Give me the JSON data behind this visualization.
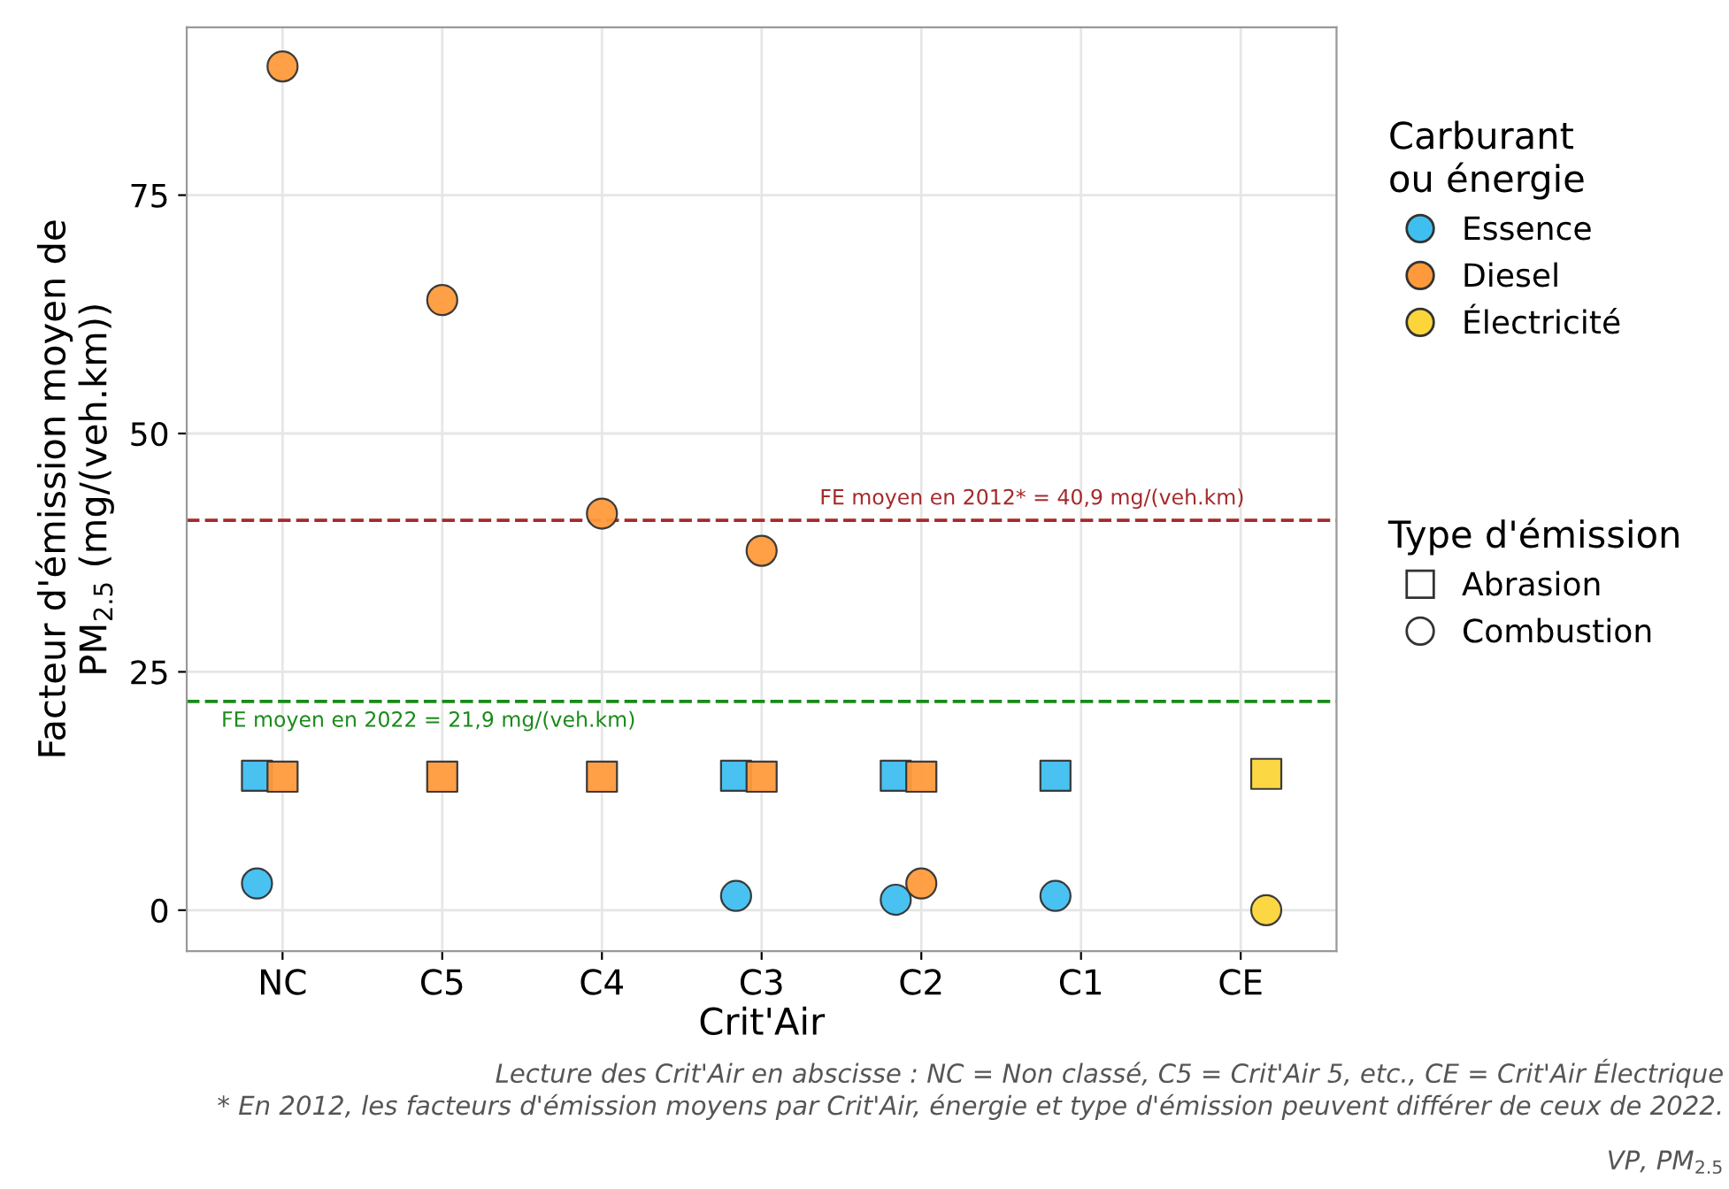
{
  "chart_data": {
    "type": "scatter",
    "xlabel": "Crit'Air",
    "ylabel": "Facteur d'émission moyen de\nPM$_{2.5}$ (mg/(veh.km))",
    "categories": [
      "NC",
      "C5",
      "C4",
      "C3",
      "C2",
      "C1",
      "CE"
    ],
    "ylim": [
      -4.3,
      92.6
    ],
    "yticks": [
      0,
      25,
      50,
      75
    ],
    "grid": true,
    "legend": "right",
    "legend_title": [
      "Carburant\nou énergie",
      "Type d'émission"
    ],
    "series": [
      {
        "color": "#3fbff0",
        "marker": "square",
        "values": [
          14.1,
          null,
          null,
          14.1,
          14.1,
          14.1,
          null
        ]
      },
      {
        "color": "#ff9a3c",
        "marker": "square",
        "values": [
          14.0,
          14.0,
          14.0,
          14.0,
          14.0,
          null,
          null
        ]
      },
      {
        "color": "#fcd53a",
        "marker": "square",
        "values": [
          null,
          null,
          null,
          null,
          null,
          null,
          14.3
        ]
      },
      {
        "name": "Essence",
        "color": "#3fbff0",
        "marker": "circle",
        "values": [
          2.8,
          null,
          null,
          1.5,
          1.1,
          1.5,
          null
        ]
      },
      {
        "name": "Diesel",
        "color": "#ff9a3c",
        "marker": "circle",
        "values": [
          88.5,
          64.0,
          41.6,
          37.7,
          2.8,
          null,
          null
        ]
      },
      {
        "name": "Électricité",
        "color": "#fcd53a",
        "marker": "circle",
        "values": [
          null,
          null,
          null,
          null,
          null,
          null,
          0
        ]
      }
    ],
    "ref_lines": [
      {
        "axis": "y",
        "value": 40.9,
        "label": "FE moyen en 2012* = 40,9 mg/(veh.km)",
        "color": "#a52a2a",
        "line_style": "dashed"
      },
      {
        "axis": "y",
        "value": 21.9,
        "label": "FE moyen en 2022 = 21,9 mg/(veh.km)",
        "color": "#1a8a1a",
        "line_style": "dashed"
      }
    ],
    "annotations": [
      "Lecture des Crit'Air en abscisse : NC = Non classé, C5 = Crit'Air 5, etc., CE = Crit'Air Électrique",
      "* En 2012, les facteurs d'émission moyens par Crit'Air, énergie et type d'émission peuvent différer de ceux de 2022.",
      "VP, PM$_{2.5}$",
      "Abrasion",
      "Combustion"
    ]
  }
}
